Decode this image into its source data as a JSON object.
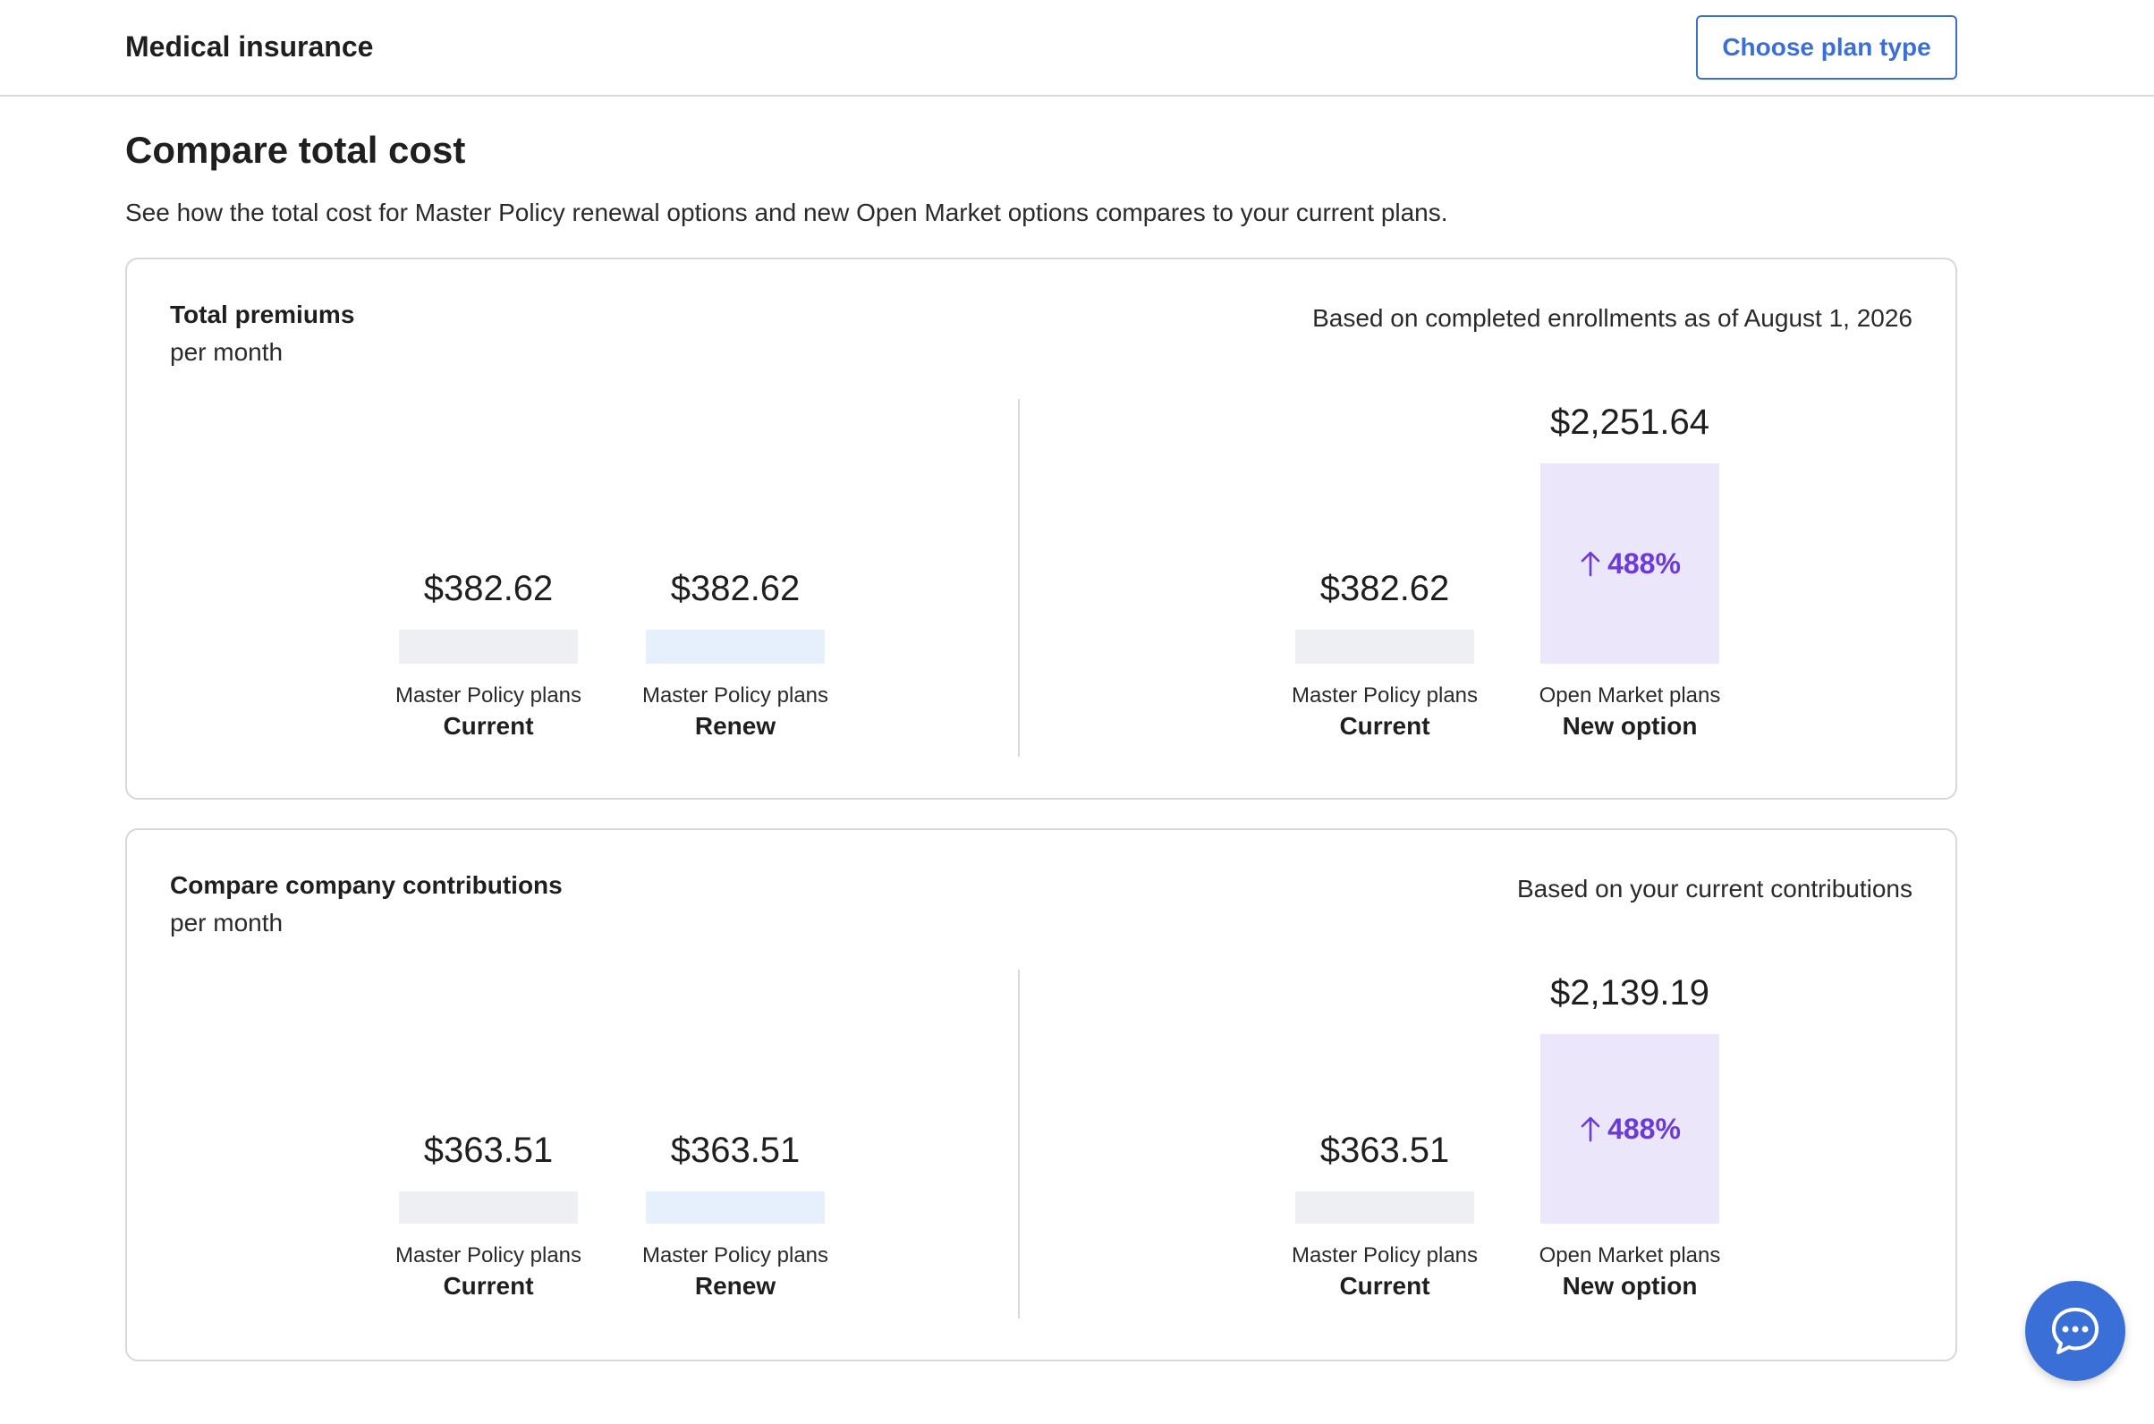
{
  "header": {
    "title": "Medical insurance",
    "choose_plan_label": "Choose plan type"
  },
  "section": {
    "title": "Compare total cost",
    "description": "See how the total cost for Master Policy renewal options and new Open Market options compares to your current plans."
  },
  "premiums": {
    "title": "Total premiums",
    "subtitle": "per month",
    "note": "Based on completed enrollments as of August 1, 2026",
    "left": [
      {
        "value": "$382.62",
        "label": "Master Policy plans",
        "sublabel": "Current"
      },
      {
        "value": "$382.62",
        "label": "Master Policy plans",
        "sublabel": "Renew"
      }
    ],
    "right": [
      {
        "value": "$382.62",
        "label": "Master Policy plans",
        "sublabel": "Current"
      },
      {
        "value": "$2,251.64",
        "label": "Open Market plans",
        "sublabel": "New option",
        "change": "488%"
      }
    ]
  },
  "contributions": {
    "title": "Compare company contributions",
    "subtitle": "per month",
    "note": "Based on your current contributions",
    "left": [
      {
        "value": "$363.51",
        "label": "Master Policy plans",
        "sublabel": "Current"
      },
      {
        "value": "$363.51",
        "label": "Master Policy plans",
        "sublabel": "Renew"
      }
    ],
    "right": [
      {
        "value": "$363.51",
        "label": "Master Policy plans",
        "sublabel": "Current"
      },
      {
        "value": "$2,139.19",
        "label": "Open Market plans",
        "sublabel": "New option",
        "change": "488%"
      }
    ]
  },
  "icons": {
    "chat": "chat-bubble-icon",
    "arrow": "arrow-up-icon"
  },
  "colors": {
    "accent": "#3a6fd8",
    "increase": "#6a3bd6",
    "bar_current": "#eeeff2",
    "bar_renew": "#e6f0fc",
    "bar_new": "#ece6fb"
  }
}
